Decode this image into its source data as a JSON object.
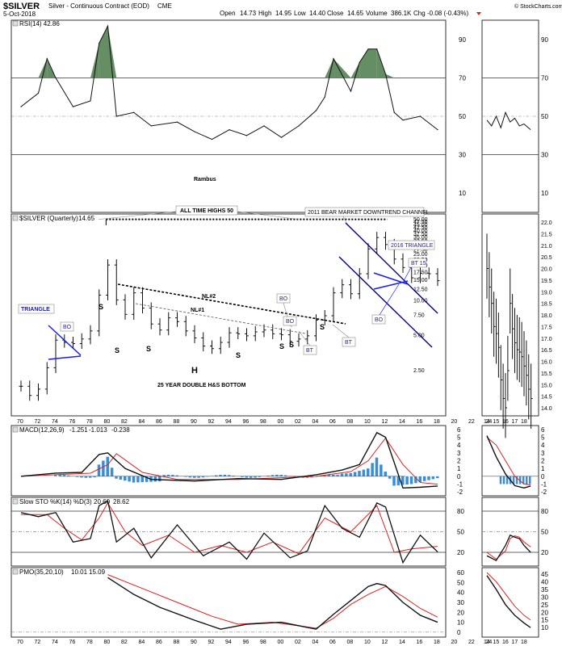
{
  "header": {
    "symbol": "$SILVER",
    "name": "Silver - Continuous Contract (EOD)",
    "exchange": "CME",
    "date": "5-Oct-2018",
    "quote_open_label": "Open",
    "quote_open": "14.73",
    "quote_high_label": "High",
    "quote_high": "14.95",
    "quote_low_label": "Low",
    "quote_low": "14.40",
    "quote_close_label": "Close",
    "quote_close": "14.65",
    "quote_volume_label": "Volume",
    "quote_volume": "386.1K",
    "quote_chg_label": "Chg",
    "quote_chg": "-0.08 (-0.43%)",
    "watermark": "© StockCharts.com"
  },
  "colors": {
    "price": "#111111",
    "signal_red": "#e02020",
    "histogram": "#3a8ed8",
    "overbought_fill": "#4a7a4a",
    "annotation_blue": "#1a1aa8",
    "channel": "#000080",
    "grid": "#bbbbbb"
  },
  "panels": {
    "rsi": {
      "label": "RSI(14) 42.86",
      "ticks": [
        "90",
        "70",
        "50",
        "30",
        "10"
      ]
    },
    "price": {
      "label_symbol": "$SILVER (Quarterly)",
      "label_value": "14.65",
      "left_ticks": [
        "50.00",
        "47.50",
        "45.00",
        "42.50",
        "40.00",
        "37.50",
        "35.00",
        "32.50",
        "30.00",
        "27.50",
        "25.00",
        "22.50",
        "20.00",
        "17.50",
        "15.00",
        "12.50",
        "10.00",
        "7.50",
        "5.00",
        "2.50"
      ],
      "right_ticks": [
        "22.0",
        "21.5",
        "21.0",
        "20.5",
        "20.0",
        "19.5",
        "19.0",
        "18.5",
        "18.0",
        "17.5",
        "17.0",
        "16.5",
        "16.0",
        "15.5",
        "15.0",
        "14.5",
        "14.0"
      ]
    },
    "macd": {
      "label_name": "MACD(12,26,9)",
      "label_macd": "-1.251",
      "label_signal": "-1.013",
      "label_hist": "-0.238",
      "ticks": [
        "6",
        "5",
        "4",
        "3",
        "2",
        "1",
        "0",
        "-1",
        "-2"
      ]
    },
    "sto": {
      "label_name": "Slow STO %K(14) %D(3)",
      "label_k": "20.60",
      "label_d": "28.62",
      "ticks": [
        "80",
        "50",
        "20"
      ]
    },
    "pmo": {
      "label_name": "PMO(35,20,10)",
      "label_pmo": "10.01",
      "label_signal": "15.09",
      "ticks": [
        "60",
        "50",
        "40",
        "30",
        "20",
        "10",
        "0"
      ],
      "ticks_right": [
        "45",
        "40",
        "35",
        "30",
        "25",
        "20",
        "15",
        "10"
      ]
    }
  },
  "annotations": {
    "all_time_highs": "ALL TIME HIGHS 50",
    "bear_channel": "2011 BEAR MARKET DOWNTREND CHANNEL",
    "triangle_2016": "2016 TRIANGLE",
    "triangle": "TRIANGLE",
    "nl2": "NL#2",
    "nl1": "NL#1",
    "bt15": "BT 15",
    "bo": "BO",
    "bt": "BT",
    "s": "S",
    "h": "H",
    "double_hs": "25 YEAR DOUBLE H&S BOTTOM",
    "rambus": "Rambus"
  },
  "axis": {
    "years_main": [
      "70",
      "72",
      "74",
      "76",
      "78",
      "80",
      "82",
      "84",
      "86",
      "88",
      "90",
      "92",
      "94",
      "96",
      "98",
      "00",
      "02",
      "04",
      "06",
      "08",
      "10",
      "12",
      "14",
      "16",
      "18",
      "20",
      "22",
      "24"
    ],
    "years_inset": [
      "14",
      "15",
      "16",
      "17",
      "18"
    ]
  },
  "chart_data": [
    {
      "type": "line",
      "title": "$SILVER (Quarterly) 14.65",
      "ylabel": "",
      "x_unit": "year",
      "series": [
        {
          "name": "$SILVER (Quarterly)",
          "x": [
            1970,
            1971,
            1972,
            1973,
            1974,
            1975,
            1976,
            1977,
            1978,
            1979,
            1980,
            1981,
            1982,
            1983,
            1984,
            1985,
            1986,
            1987,
            1988,
            1989,
            1990,
            1991,
            1992,
            1993,
            1994,
            1995,
            1996,
            1997,
            1998,
            1999,
            2000,
            2001,
            2002,
            2003,
            2004,
            2005,
            2006,
            2007,
            2008,
            2009,
            2010,
            2011,
            2012,
            2013,
            2014,
            2015,
            2016,
            2017,
            2018
          ],
          "values": [
            1.8,
            1.5,
            1.7,
            2.6,
            4.5,
            4.3,
            4.2,
            4.6,
            5.4,
            11.0,
            20.0,
            10.0,
            7.5,
            11.5,
            8.5,
            6.2,
            5.5,
            7.0,
            6.5,
            5.4,
            4.7,
            4.0,
            3.8,
            4.3,
            5.2,
            5.1,
            4.9,
            5.3,
            5.5,
            5.1,
            5.0,
            4.4,
            4.6,
            4.9,
            6.7,
            7.3,
            11.5,
            13.5,
            11.3,
            16.8,
            27.5,
            34.5,
            30.0,
            22.5,
            19.0,
            15.5,
            17.0,
            16.8,
            14.65
          ]
        }
      ],
      "ylim": [
        1.0,
        50.0
      ],
      "yscale": "log"
    },
    {
      "type": "line",
      "title": "RSI(14) 42.86",
      "x_unit": "year",
      "series": [
        {
          "name": "RSI(14)",
          "x": [
            1970,
            1972,
            1973,
            1974,
            1976,
            1978,
            1979,
            1980,
            1981,
            1983,
            1985,
            1988,
            1990,
            1992,
            1994,
            1996,
            1998,
            2000,
            2002,
            2004,
            2005,
            2006,
            2008,
            2009,
            2010,
            2011,
            2012,
            2013,
            2014,
            2016,
            2018
          ],
          "values": [
            55,
            62,
            80,
            70,
            55,
            58,
            88,
            97,
            50,
            52,
            45,
            47,
            42,
            38,
            43,
            40,
            45,
            39,
            45,
            53,
            60,
            80,
            63,
            78,
            85,
            85,
            72,
            52,
            48,
            50,
            43
          ]
        }
      ],
      "ylim": [
        0,
        100
      ],
      "reference_lines": [
        70,
        50,
        30
      ]
    },
    {
      "type": "line",
      "title": "MACD(12,26,9) -1.251, -1.013, -0.238",
      "x_unit": "year",
      "series": [
        {
          "name": "MACD(12,26,9)",
          "x": [
            1970,
            1974,
            1977,
            1979,
            1980,
            1982,
            1985,
            1990,
            1995,
            2000,
            2004,
            2007,
            2009,
            2011,
            2012,
            2014,
            2016,
            2018
          ],
          "values": [
            0.0,
            0.4,
            0.5,
            2.8,
            3.0,
            1.0,
            -0.4,
            -0.6,
            -0.3,
            -0.4,
            0.2,
            0.8,
            1.5,
            5.6,
            5.0,
            -1.5,
            -1.4,
            -1.25
          ]
        },
        {
          "name": "signal",
          "x": [
            1970,
            1974,
            1978,
            1980,
            1981,
            1984,
            1988,
            1995,
            2004,
            2008,
            2010,
            2012,
            2014,
            2016,
            2018
          ],
          "values": [
            0.0,
            0.2,
            0.4,
            1.5,
            2.9,
            0.5,
            -0.4,
            -0.4,
            0.0,
            0.6,
            2.0,
            4.9,
            1.5,
            -0.8,
            -1.01
          ]
        },
        {
          "name": "histogram",
          "x": [
            1979,
            1980,
            1981,
            1983,
            2008,
            2010,
            2011,
            2013,
            2015,
            2018
          ],
          "values": [
            1.5,
            2.5,
            -0.3,
            -0.8,
            0.4,
            1.0,
            2.4,
            -1.2,
            -1.0,
            -0.24
          ]
        }
      ],
      "ylim": [
        -2.5,
        6.5
      ]
    },
    {
      "type": "line",
      "title": "Slow STO %K(14) %D(3) 20.60, 28.62",
      "x_unit": "year",
      "series": [
        {
          "name": "%K(14)",
          "x": [
            1970,
            1972,
            1974,
            1976,
            1978,
            1979,
            1980,
            1981,
            1983,
            1985,
            1988,
            1991,
            1994,
            1996,
            1998,
            2001,
            2003,
            2005,
            2007,
            2009,
            2011,
            2012,
            2014,
            2016,
            2018
          ],
          "values": [
            78,
            72,
            78,
            35,
            40,
            88,
            95,
            35,
            55,
            12,
            60,
            15,
            35,
            10,
            48,
            12,
            22,
            88,
            55,
            42,
            92,
            86,
            5,
            45,
            20.6
          ]
        },
        {
          "name": "%D(3)",
          "x": [
            1970,
            1973,
            1975,
            1977,
            1979,
            1980,
            1982,
            1984,
            1987,
            1990,
            1993,
            1996,
            1999,
            2002,
            2005,
            2008,
            2011,
            2013,
            2015,
            2018
          ],
          "values": [
            75,
            75,
            55,
            38,
            70,
            92,
            50,
            30,
            45,
            20,
            30,
            20,
            35,
            18,
            70,
            50,
            88,
            20,
            25,
            28.62
          ]
        }
      ],
      "ylim": [
        0,
        100
      ],
      "reference_lines": [
        80,
        50,
        20
      ]
    },
    {
      "type": "line",
      "title": "PMO(35,20,10) 10.01, 15.09",
      "x_unit": "year",
      "series": [
        {
          "name": "PMO(35,20,10)",
          "x": [
            1980,
            1983,
            1986,
            1990,
            1993,
            1996,
            2000,
            2004,
            2006,
            2008,
            2010,
            2011,
            2012,
            2014,
            2016,
            2018
          ],
          "values": [
            55,
            38,
            25,
            12,
            3,
            8,
            10,
            3,
            18,
            32,
            46,
            49,
            47,
            30,
            17,
            10.01
          ]
        },
        {
          "name": "signal",
          "x": [
            1980,
            1984,
            1988,
            1992,
            1995,
            1999,
            2004,
            2006,
            2008,
            2010,
            2012,
            2014,
            2016,
            2018
          ],
          "values": [
            58,
            44,
            30,
            16,
            8,
            10,
            4,
            14,
            28,
            38,
            46,
            36,
            24,
            15.09
          ]
        }
      ],
      "ylim": [
        -5,
        65
      ],
      "reference_lines": [
        0
      ]
    }
  ]
}
